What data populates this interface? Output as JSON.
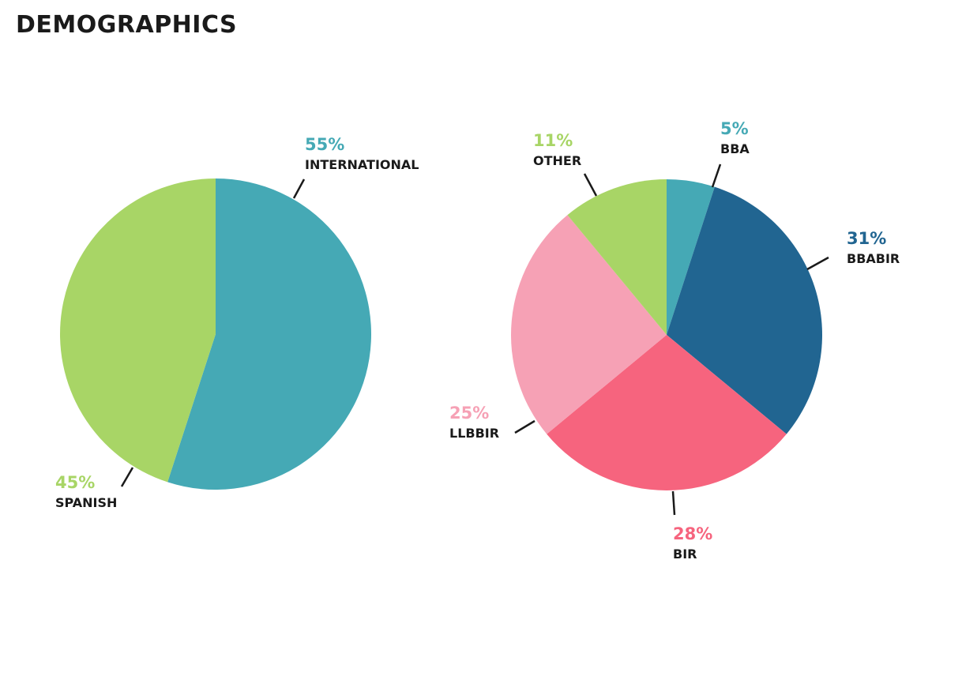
{
  "page": {
    "title": "DEMOGRAPHICS"
  },
  "chart_data": [
    {
      "type": "pie",
      "title": "",
      "slices": [
        {
          "label": "INTERNATIONAL",
          "value": 55,
          "display": "55%",
          "color": "#45a9b5"
        },
        {
          "label": "SPANISH",
          "value": 45,
          "display": "45%",
          "color": "#a8d566"
        }
      ]
    },
    {
      "type": "pie",
      "title": "",
      "slices": [
        {
          "label": "BBA",
          "value": 5,
          "display": "5%",
          "color": "#45a9b5"
        },
        {
          "label": "BBABIR",
          "value": 31,
          "display": "31%",
          "color": "#216591"
        },
        {
          "label": "BIR",
          "value": 28,
          "display": "28%",
          "color": "#f6647e"
        },
        {
          "label": "LLBBIR",
          "value": 25,
          "display": "25%",
          "color": "#f6a1b5"
        },
        {
          "label": "OTHER",
          "value": 11,
          "display": "11%",
          "color": "#a8d566"
        }
      ]
    }
  ]
}
